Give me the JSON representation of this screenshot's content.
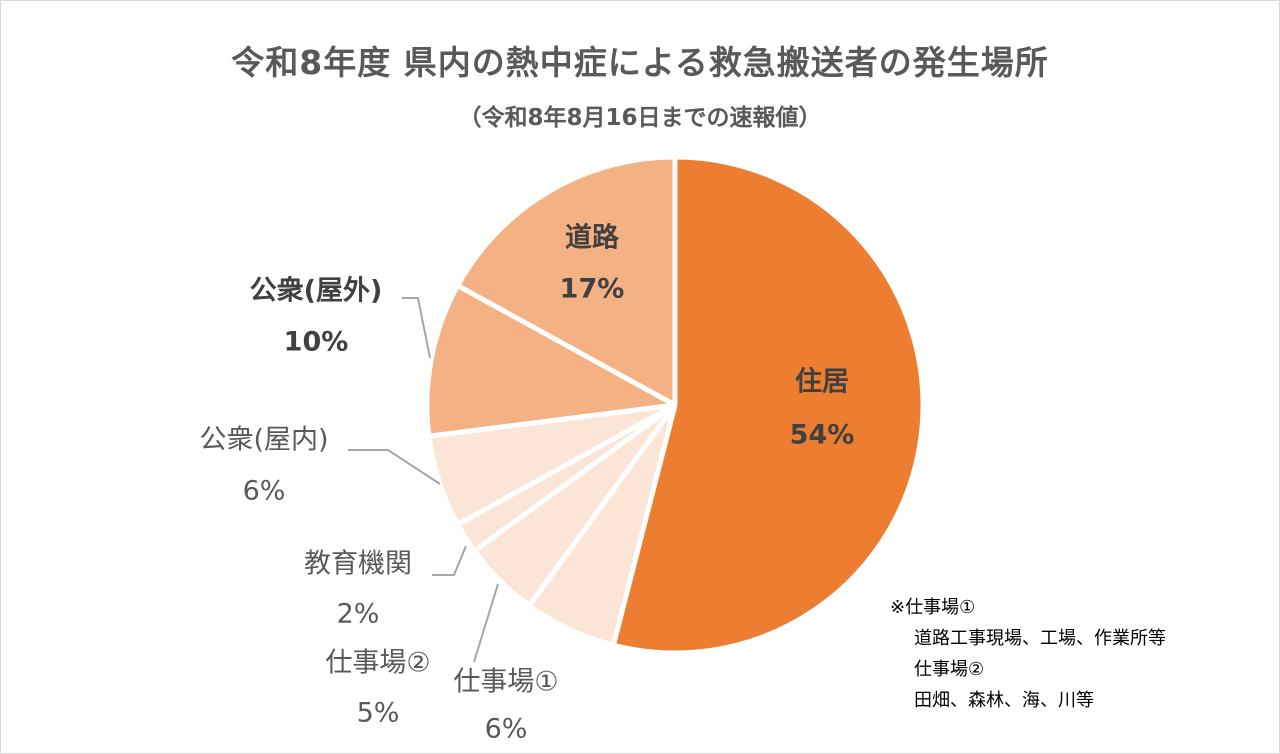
{
  "colors": {
    "main": "#ED7D31",
    "light": "#F4B183",
    "pale": "#FBE5D6",
    "leader": "#a6a6a6",
    "label_dark": "#404040",
    "label_gray": "#595959"
  },
  "chart_data": {
    "type": "pie",
    "title": "令和8年度 県内の熱中症による救急搬送者の発生場所",
    "subtitle": "（令和8年8月16日までの速報値）",
    "slices": [
      {
        "name": "住居",
        "pct": "54%",
        "value": 54,
        "color": "#ED7D31"
      },
      {
        "name": "仕事場①",
        "pct": "6%",
        "value": 6,
        "color": "#FBE5D6"
      },
      {
        "name": "仕事場②",
        "pct": "5%",
        "value": 5,
        "color": "#FBE5D6"
      },
      {
        "name": "教育機関",
        "pct": "2%",
        "value": 2,
        "color": "#FBE5D6"
      },
      {
        "name": "公衆(屋内)",
        "pct": "6%",
        "value": 6,
        "color": "#FBE5D6"
      },
      {
        "name": "公衆(屋外)",
        "pct": "10%",
        "value": 10,
        "color": "#F4B183"
      },
      {
        "name": "道路",
        "pct": "17%",
        "value": 17,
        "color": "#F4B183"
      }
    ]
  },
  "note": {
    "heading1": "※仕事場①",
    "line1": "道路工事現場、工場、作業所等",
    "heading2": "仕事場②",
    "line2": "田畑、森林、海、川等"
  }
}
